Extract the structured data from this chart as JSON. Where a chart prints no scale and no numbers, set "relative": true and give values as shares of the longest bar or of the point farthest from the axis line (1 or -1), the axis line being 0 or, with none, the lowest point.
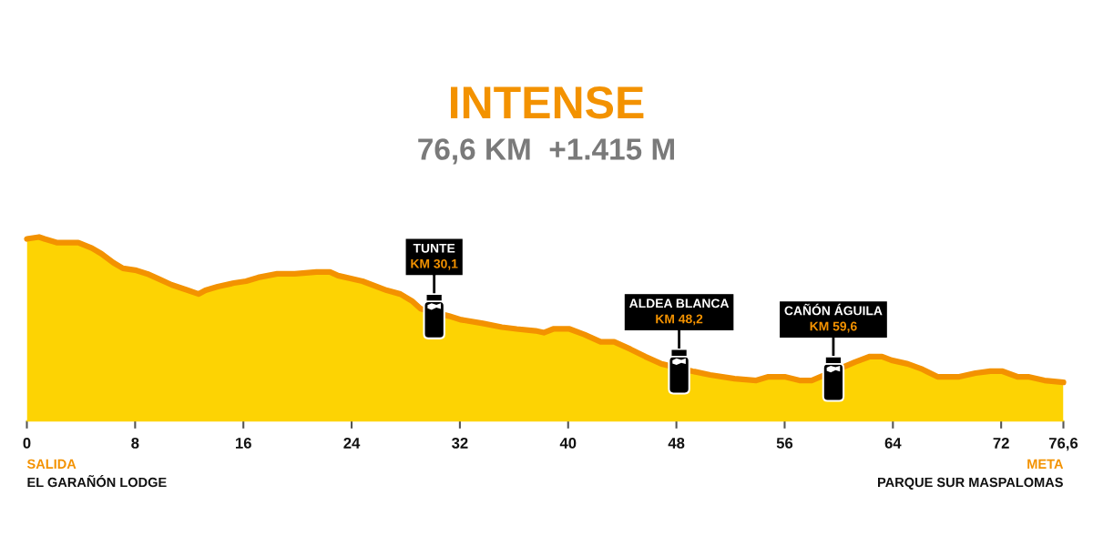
{
  "chart_data": {
    "type": "area",
    "title": "INTENSE",
    "subtitle": "76,6 KM  +1.415 M",
    "relative": true,
    "tick_labels": "x",
    "xlim": [
      0,
      76.6
    ],
    "xticks": [
      0,
      8,
      16,
      24,
      32,
      40,
      48,
      56,
      64,
      72,
      {
        "value": 76.6,
        "label": "76,6"
      }
    ],
    "x": [
      0,
      0.9,
      1.3,
      2.2,
      3.8,
      4.8,
      5.5,
      6.4,
      7.1,
      8.0,
      8.9,
      9.8,
      10.7,
      11.9,
      12.7,
      13.2,
      14.1,
      15.3,
      16.2,
      17.1,
      18.5,
      19.8,
      21.4,
      22.4,
      23.0,
      24.8,
      26.6,
      27.6,
      28.5,
      29.1,
      31.2,
      32.1,
      33.7,
      35.1,
      36.2,
      37.6,
      38.2,
      38.9,
      40.1,
      41.2,
      42.4,
      43.4,
      44.6,
      45.7,
      46.9,
      49.2,
      50.5,
      52.3,
      53.9,
      54.8,
      56.0,
      57.1,
      58.0,
      61.2,
      62.3,
      63.2,
      63.9,
      65.1,
      66.2,
      67.3,
      68.9,
      70.1,
      71.2,
      72.1,
      73.2,
      74.0,
      75.2,
      76.6
    ],
    "series": [
      {
        "color": "#fdd303",
        "values": [
          0.99,
          1.0,
          0.99,
          0.97,
          0.97,
          0.94,
          0.91,
          0.86,
          0.83,
          0.82,
          0.8,
          0.77,
          0.74,
          0.71,
          0.69,
          0.71,
          0.73,
          0.75,
          0.76,
          0.78,
          0.8,
          0.8,
          0.81,
          0.81,
          0.79,
          0.76,
          0.71,
          0.69,
          0.65,
          0.61,
          0.57,
          0.55,
          0.53,
          0.51,
          0.5,
          0.49,
          0.48,
          0.5,
          0.5,
          0.47,
          0.43,
          0.43,
          0.39,
          0.35,
          0.31,
          0.27,
          0.25,
          0.23,
          0.22,
          0.24,
          0.24,
          0.22,
          0.22,
          0.32,
          0.35,
          0.35,
          0.33,
          0.31,
          0.28,
          0.24,
          0.24,
          0.26,
          0.27,
          0.27,
          0.24,
          0.24,
          0.22,
          0.21
        ]
      }
    ],
    "annotations": [
      {
        "text": "TUNTE\nKM 30,1",
        "x": 30.1,
        "y": 0.59
      },
      {
        "text": "ALDEA BLANCA\nKM 48,2",
        "x": 48.2,
        "y": 0.29
      },
      {
        "text": "CAÑÓN ÁGUILA\nKM 59,6",
        "x": 59.6,
        "y": 0.25
      },
      "SALIDA\nEL GARAÑÓN LODGE",
      "META\nPARQUE SUR MASPALOMAS"
    ]
  }
}
